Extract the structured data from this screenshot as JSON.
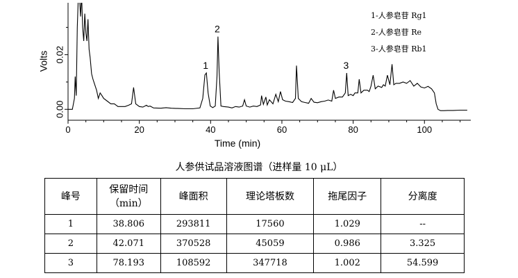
{
  "chart_data": {
    "type": "line",
    "xlabel": "Time (min)",
    "ylabel": "Volts",
    "xlim": [
      0,
      113
    ],
    "ylim": [
      -0.004,
      0.039
    ],
    "x_ticks": [
      "0",
      "20",
      "40",
      "60",
      "80",
      "100"
    ],
    "y_ticks": [
      "0.00",
      "0.02"
    ],
    "series": [
      {
        "x": [
          0,
          1.2,
          1.8,
          2.0,
          2.3,
          2.6,
          2.9,
          3.2,
          3.5,
          3.8,
          4.1,
          4.4,
          4.7,
          5.0,
          5.3,
          5.6,
          5.9,
          6.2,
          6.6,
          7.0,
          7.5,
          8.0,
          8.5,
          9.0,
          9.5,
          10,
          11,
          12,
          13,
          14,
          15,
          16,
          17,
          17.8,
          18.4,
          19,
          20,
          21,
          22,
          22.5,
          23,
          24,
          26,
          27.5,
          29,
          31,
          33,
          35,
          37,
          37.8,
          38.4,
          38.8,
          39.3,
          39.9,
          40.6,
          41.3,
          41.8,
          42.07,
          42.4,
          42.9,
          43.6,
          45,
          46,
          47,
          48,
          49,
          49.5,
          50,
          51,
          52,
          53,
          54,
          54.3,
          54.8,
          55.5,
          55.9,
          56.5,
          57.5,
          58.3,
          59,
          59.6,
          60.2,
          61,
          62,
          63,
          63.8,
          64.1,
          64.6,
          65.5,
          66.5,
          67.5,
          68.2,
          69,
          70,
          71,
          72,
          73,
          74,
          74.5,
          75,
          76,
          77,
          77.8,
          78.193,
          78.6,
          79.3,
          80,
          80.5,
          81.3,
          81.7,
          82.2,
          83,
          84,
          84.5,
          85,
          85.6,
          86.2,
          87,
          88,
          88.5,
          89,
          89.6,
          90.3,
          90.9,
          91.4,
          92,
          93,
          94,
          95,
          96,
          97,
          98,
          99,
          100,
          101,
          102,
          102.8,
          103.3,
          103.8,
          104.5,
          105.5,
          106.5,
          108,
          110,
          112
        ],
        "y": [
          0.0,
          0.0,
          0.004,
          0.012,
          0.005,
          0.03,
          0.042,
          0.041,
          0.034,
          0.042,
          0.03,
          0.025,
          0.035,
          0.028,
          0.025,
          0.033,
          0.022,
          0.019,
          0.013,
          0.011,
          0.009,
          0.007,
          0.004,
          0.006,
          0.005,
          0.004,
          0.003,
          0.002,
          0.002,
          0.001,
          0.001,
          0.001,
          0.0015,
          0.002,
          0.008,
          0.002,
          0.001,
          0.0008,
          0.0015,
          0.001,
          0.0012,
          0.0005,
          0.0004,
          0.0006,
          0.0004,
          0.0003,
          0.0002,
          0.0002,
          0.0005,
          0.004,
          0.0126,
          0.0133,
          0.006,
          0.0012,
          0.0006,
          0.0012,
          0.012,
          0.0266,
          0.014,
          0.0012,
          0.001,
          0.0008,
          0.0005,
          0.001,
          0.0008,
          0.0012,
          0.0035,
          0.0012,
          0.0008,
          0.0012,
          0.001,
          0.0016,
          0.005,
          0.0018,
          0.0045,
          0.0016,
          0.0035,
          0.002,
          0.0055,
          0.0028,
          0.0065,
          0.0035,
          0.003,
          0.0028,
          0.0025,
          0.004,
          0.016,
          0.004,
          0.0028,
          0.0025,
          0.0022,
          0.004,
          0.0026,
          0.0024,
          0.0028,
          0.003,
          0.0034,
          0.003,
          0.007,
          0.004,
          0.0045,
          0.0045,
          0.006,
          0.0133,
          0.005,
          0.0055,
          0.005,
          0.006,
          0.006,
          0.011,
          0.006,
          0.007,
          0.007,
          0.0065,
          0.0085,
          0.0125,
          0.0075,
          0.0085,
          0.008,
          0.009,
          0.0085,
          0.0125,
          0.009,
          0.0165,
          0.009,
          0.0095,
          0.0095,
          0.01,
          0.0095,
          0.0105,
          0.0085,
          0.0095,
          0.0082,
          0.0078,
          0.0084,
          0.0075,
          0.006,
          0.002,
          0.0,
          -0.0005,
          -0.0005,
          -0.0004,
          -0.0004,
          -0.0003,
          -0.0003
        ]
      }
    ],
    "peak_labels": [
      {
        "text": "1",
        "x": 38.8,
        "y": 0.0133
      },
      {
        "text": "2",
        "x": 42.07,
        "y": 0.0266
      },
      {
        "text": "3",
        "x": 78.193,
        "y": 0.0133
      }
    ],
    "legend_items": [
      "1-人参皂苷 Rg1",
      "2-人参皂苷 Re",
      "3-人参皂苷 Rb1"
    ],
    "legend_position": "top-right",
    "grid": false
  },
  "caption": "人参供试品溶液图谱（进样量 10 μL）",
  "table": {
    "headers": [
      "峰号",
      "保留时间\n（min）",
      "峰面积",
      "理论塔板数",
      "拖尾因子",
      "分离度"
    ],
    "rows": [
      [
        "1",
        "38.806",
        "293811",
        "17560",
        "1.029",
        "--"
      ],
      [
        "2",
        "42.071",
        "370528",
        "45059",
        "0.986",
        "3.325"
      ],
      [
        "3",
        "78.193",
        "108592",
        "347718",
        "1.002",
        "54.599"
      ]
    ]
  }
}
